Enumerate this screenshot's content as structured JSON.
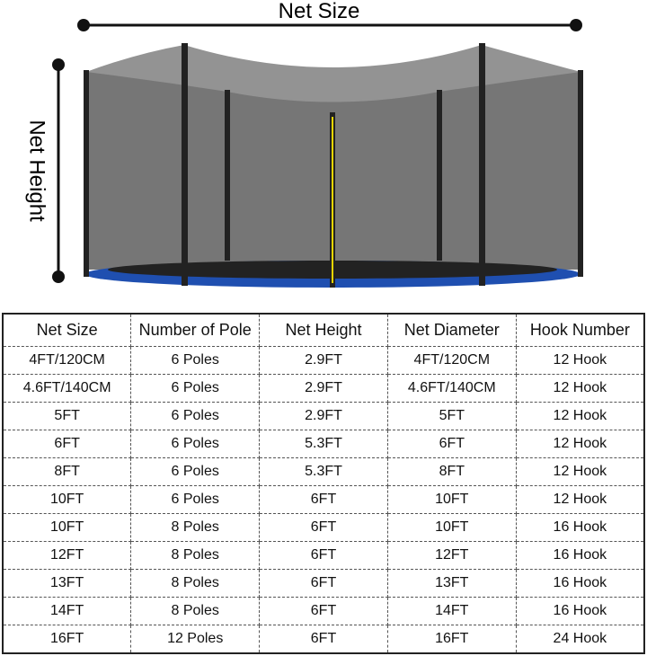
{
  "diagram": {
    "net_size_label": "Net Size",
    "net_height_label": "Net Height"
  },
  "table": {
    "header": [
      "Net Size",
      "Number of Pole",
      "Net Height",
      "Net Diameter",
      "Hook Number"
    ],
    "rows": [
      [
        "4FT/120CM",
        "6 Poles",
        "2.9FT",
        "4FT/120CM",
        "12 Hook"
      ],
      [
        "4.6FT/140CM",
        "6 Poles",
        "2.9FT",
        "4.6FT/140CM",
        "12 Hook"
      ],
      [
        "5FT",
        "6 Poles",
        "2.9FT",
        "5FT",
        "12 Hook"
      ],
      [
        "6FT",
        "6 Poles",
        "5.3FT",
        "6FT",
        "12 Hook"
      ],
      [
        "8FT",
        "6 Poles",
        "5.3FT",
        "8FT",
        "12 Hook"
      ],
      [
        "10FT",
        "6 Poles",
        "6FT",
        "10FT",
        "12 Hook"
      ],
      [
        "10FT",
        "8 Poles",
        "6FT",
        "10FT",
        "16 Hook"
      ],
      [
        "12FT",
        "8 Poles",
        "6FT",
        "12FT",
        "16 Hook"
      ],
      [
        "13FT",
        "8 Poles",
        "6FT",
        "13FT",
        "16 Hook"
      ],
      [
        "14FT",
        "8 Poles",
        "6FT",
        "14FT",
        "16 Hook"
      ],
      [
        "16FT",
        "12 Poles",
        "6FT",
        "16FT",
        "24 Hook"
      ]
    ]
  }
}
